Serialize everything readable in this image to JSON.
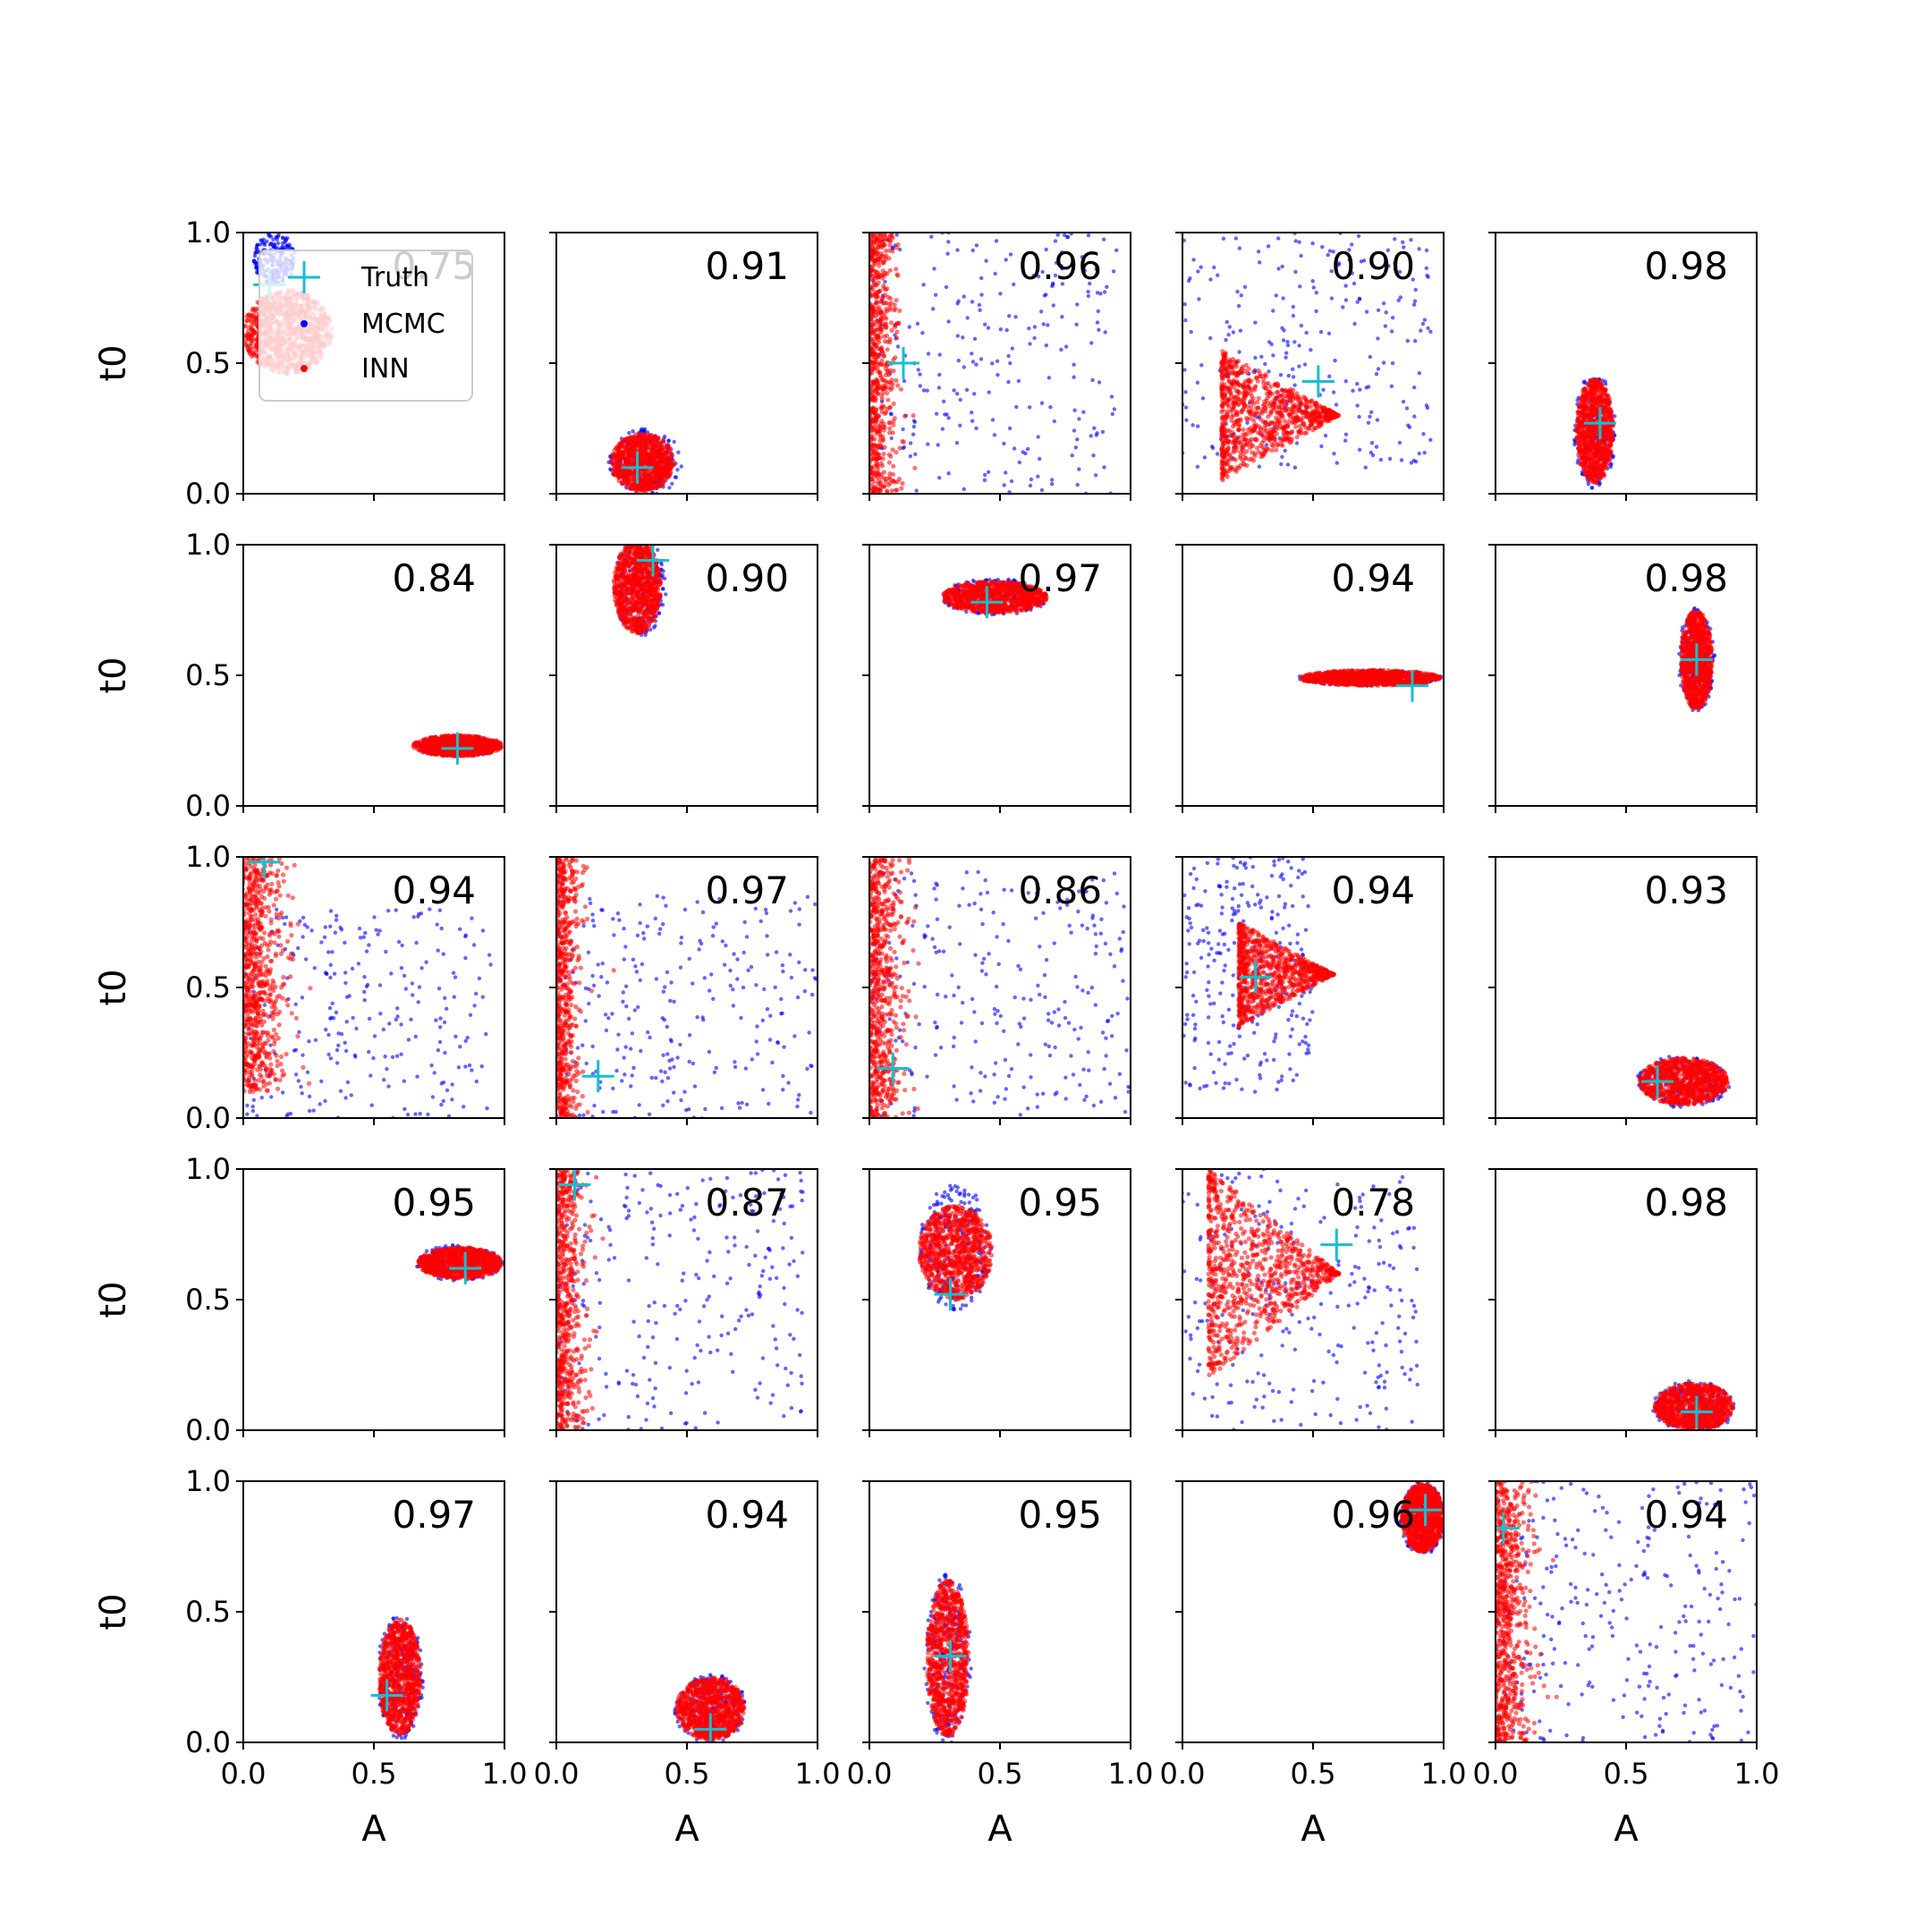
{
  "figure": {
    "background": "#ffffff",
    "axis_color": "#000000",
    "legend": {
      "placement": "top-left of first panel",
      "entries": [
        {
          "label": "Truth",
          "marker": "plus",
          "color": "#17becf"
        },
        {
          "label": "MCMC",
          "marker": "dot",
          "color": "#0000ff"
        },
        {
          "label": "INN",
          "marker": "dot",
          "color": "#ff0000"
        }
      ]
    }
  },
  "chart_data": {
    "type": "scatter",
    "rows": 5,
    "cols": 5,
    "xlabel": "A",
    "ylabel": "t0",
    "xlim": [
      0,
      1
    ],
    "ylim": [
      0,
      1
    ],
    "xticks": [
      "0.0",
      "0.5",
      "1.0"
    ],
    "yticks": [
      "0.0",
      "0.5",
      "1.0"
    ],
    "series_colors": {
      "truth": "#17becf",
      "mcmc": "#0000ff",
      "inn": "#ff0000"
    },
    "panels": [
      {
        "score": "0.75",
        "truth": [
          0.1,
          0.8
        ],
        "inn": {
          "shape": "blob",
          "cx": 0.17,
          "cy": 0.62,
          "rx": 0.17,
          "ry": 0.16
        },
        "mcmc": {
          "shape": "blob",
          "cx": 0.12,
          "cy": 0.9,
          "rx": 0.08,
          "ry": 0.1
        }
      },
      {
        "score": "0.91",
        "truth": [
          0.31,
          0.1
        ],
        "inn": {
          "shape": "blob",
          "cx": 0.33,
          "cy": 0.12,
          "rx": 0.12,
          "ry": 0.11
        },
        "mcmc": {
          "shape": "blob",
          "cx": 0.34,
          "cy": 0.12,
          "rx": 0.14,
          "ry": 0.13
        }
      },
      {
        "score": "0.96",
        "truth": [
          0.13,
          0.5
        ],
        "inn": {
          "shape": "wall",
          "cx": 0.06,
          "cy": 0.5,
          "rx": 0.08,
          "ry": 0.5
        },
        "mcmc": {
          "shape": "spread",
          "cx": 0.45,
          "cy": 0.5,
          "rx": 0.5,
          "ry": 0.5
        }
      },
      {
        "score": "0.90",
        "truth": [
          0.52,
          0.43
        ],
        "inn": {
          "shape": "fan",
          "cx": 0.15,
          "cy": 0.3,
          "rx": 0.45,
          "ry": 0.25
        },
        "mcmc": {
          "shape": "spread",
          "cx": 0.45,
          "cy": 0.55,
          "rx": 0.5,
          "ry": 0.45
        }
      },
      {
        "score": "0.98",
        "truth": [
          0.4,
          0.27
        ],
        "inn": {
          "shape": "blob",
          "cx": 0.38,
          "cy": 0.24,
          "rx": 0.07,
          "ry": 0.2
        },
        "mcmc": {
          "shape": "blob",
          "cx": 0.38,
          "cy": 0.24,
          "rx": 0.08,
          "ry": 0.22
        }
      },
      {
        "score": "0.84",
        "truth": [
          0.82,
          0.22
        ],
        "inn": {
          "shape": "blob",
          "cx": 0.82,
          "cy": 0.23,
          "rx": 0.17,
          "ry": 0.04
        },
        "mcmc": {
          "shape": "blob",
          "cx": 0.82,
          "cy": 0.23,
          "rx": 0.17,
          "ry": 0.04
        }
      },
      {
        "score": "0.90",
        "truth": [
          0.37,
          0.94
        ],
        "inn": {
          "shape": "blob",
          "cx": 0.31,
          "cy": 0.84,
          "rx": 0.09,
          "ry": 0.18
        },
        "mcmc": {
          "shape": "blob",
          "cx": 0.32,
          "cy": 0.84,
          "rx": 0.1,
          "ry": 0.19
        }
      },
      {
        "score": "0.97",
        "truth": [
          0.45,
          0.78
        ],
        "inn": {
          "shape": "blob",
          "cx": 0.48,
          "cy": 0.8,
          "rx": 0.2,
          "ry": 0.06
        },
        "mcmc": {
          "shape": "blob",
          "cx": 0.48,
          "cy": 0.8,
          "rx": 0.21,
          "ry": 0.07
        }
      },
      {
        "score": "0.94",
        "truth": [
          0.88,
          0.46
        ],
        "inn": {
          "shape": "blob",
          "cx": 0.72,
          "cy": 0.49,
          "rx": 0.27,
          "ry": 0.03
        },
        "mcmc": {
          "shape": "blob",
          "cx": 0.72,
          "cy": 0.49,
          "rx": 0.28,
          "ry": 0.03
        }
      },
      {
        "score": "0.98",
        "truth": [
          0.77,
          0.56
        ],
        "inn": {
          "shape": "blob",
          "cx": 0.77,
          "cy": 0.56,
          "rx": 0.06,
          "ry": 0.19
        },
        "mcmc": {
          "shape": "blob",
          "cx": 0.77,
          "cy": 0.56,
          "rx": 0.07,
          "ry": 0.2
        }
      },
      {
        "score": "0.94",
        "truth": [
          0.08,
          0.98
        ],
        "inn": {
          "shape": "wall",
          "cx": 0.1,
          "cy": 0.55,
          "rx": 0.12,
          "ry": 0.45
        },
        "mcmc": {
          "shape": "spread",
          "cx": 0.45,
          "cy": 0.4,
          "rx": 0.5,
          "ry": 0.4
        }
      },
      {
        "score": "0.97",
        "truth": [
          0.16,
          0.16
        ],
        "inn": {
          "shape": "wall",
          "cx": 0.05,
          "cy": 0.5,
          "rx": 0.07,
          "ry": 0.5
        },
        "mcmc": {
          "shape": "spread",
          "cx": 0.5,
          "cy": 0.4,
          "rx": 0.5,
          "ry": 0.45
        }
      },
      {
        "score": "0.86",
        "truth": [
          0.09,
          0.19
        ],
        "inn": {
          "shape": "wall",
          "cx": 0.08,
          "cy": 0.5,
          "rx": 0.1,
          "ry": 0.5
        },
        "mcmc": {
          "shape": "spread",
          "cx": 0.5,
          "cy": 0.45,
          "rx": 0.5,
          "ry": 0.5
        }
      },
      {
        "score": "0.94",
        "truth": [
          0.28,
          0.54
        ],
        "inn": {
          "shape": "cone",
          "cx": 0.3,
          "cy": 0.55,
          "rx": 0.28,
          "ry": 0.2
        },
        "mcmc": {
          "shape": "spread",
          "cx": 0.25,
          "cy": 0.55,
          "rx": 0.25,
          "ry": 0.45
        }
      },
      {
        "score": "0.93",
        "truth": [
          0.62,
          0.14
        ],
        "inn": {
          "shape": "blob",
          "cx": 0.72,
          "cy": 0.14,
          "rx": 0.17,
          "ry": 0.09
        },
        "mcmc": {
          "shape": "blob",
          "cx": 0.72,
          "cy": 0.14,
          "rx": 0.18,
          "ry": 0.1
        }
      },
      {
        "score": "0.95",
        "truth": [
          0.85,
          0.62
        ],
        "inn": {
          "shape": "blob",
          "cx": 0.83,
          "cy": 0.64,
          "rx": 0.16,
          "ry": 0.06
        },
        "mcmc": {
          "shape": "blob",
          "cx": 0.83,
          "cy": 0.64,
          "rx": 0.17,
          "ry": 0.07
        }
      },
      {
        "score": "0.87",
        "truth": [
          0.07,
          0.94
        ],
        "inn": {
          "shape": "wall",
          "cx": 0.06,
          "cy": 0.5,
          "rx": 0.08,
          "ry": 0.5
        },
        "mcmc": {
          "shape": "spread",
          "cx": 0.45,
          "cy": 0.5,
          "rx": 0.5,
          "ry": 0.5
        }
      },
      {
        "score": "0.95",
        "truth": [
          0.31,
          0.52
        ],
        "inn": {
          "shape": "blob",
          "cx": 0.33,
          "cy": 0.68,
          "rx": 0.14,
          "ry": 0.18
        },
        "mcmc": {
          "shape": "blob",
          "cx": 0.33,
          "cy": 0.7,
          "rx": 0.14,
          "ry": 0.24
        }
      },
      {
        "score": "0.78",
        "truth": [
          0.59,
          0.71
        ],
        "inn": {
          "shape": "fan",
          "cx": 0.1,
          "cy": 0.6,
          "rx": 0.5,
          "ry": 0.4
        },
        "mcmc": {
          "shape": "spread",
          "cx": 0.4,
          "cy": 0.5,
          "rx": 0.5,
          "ry": 0.5
        }
      },
      {
        "score": "0.98",
        "truth": [
          0.77,
          0.07
        ],
        "inn": {
          "shape": "blob",
          "cx": 0.76,
          "cy": 0.09,
          "rx": 0.15,
          "ry": 0.09
        },
        "mcmc": {
          "shape": "blob",
          "cx": 0.76,
          "cy": 0.09,
          "rx": 0.16,
          "ry": 0.1
        }
      },
      {
        "score": "0.97",
        "truth": [
          0.55,
          0.18
        ],
        "inn": {
          "shape": "blob",
          "cx": 0.6,
          "cy": 0.25,
          "rx": 0.08,
          "ry": 0.22
        },
        "mcmc": {
          "shape": "blob",
          "cx": 0.6,
          "cy": 0.25,
          "rx": 0.09,
          "ry": 0.24
        }
      },
      {
        "score": "0.94",
        "truth": [
          0.59,
          0.05
        ],
        "inn": {
          "shape": "blob",
          "cx": 0.59,
          "cy": 0.13,
          "rx": 0.13,
          "ry": 0.12
        },
        "mcmc": {
          "shape": "blob",
          "cx": 0.59,
          "cy": 0.13,
          "rx": 0.14,
          "ry": 0.13
        }
      },
      {
        "score": "0.95",
        "truth": [
          0.31,
          0.33
        ],
        "inn": {
          "shape": "blob",
          "cx": 0.3,
          "cy": 0.32,
          "rx": 0.08,
          "ry": 0.3
        },
        "mcmc": {
          "shape": "blob",
          "cx": 0.3,
          "cy": 0.32,
          "rx": 0.09,
          "ry": 0.33
        }
      },
      {
        "score": "0.96",
        "truth": [
          0.93,
          0.89
        ],
        "inn": {
          "shape": "blob",
          "cx": 0.92,
          "cy": 0.86,
          "rx": 0.08,
          "ry": 0.13
        },
        "mcmc": {
          "shape": "blob",
          "cx": 0.92,
          "cy": 0.86,
          "rx": 0.09,
          "ry": 0.14
        }
      },
      {
        "score": "0.94",
        "truth": [
          0.03,
          0.82
        ],
        "inn": {
          "shape": "wall",
          "cx": 0.08,
          "cy": 0.5,
          "rx": 0.1,
          "ry": 0.5
        },
        "mcmc": {
          "shape": "spread",
          "cx": 0.5,
          "cy": 0.5,
          "rx": 0.5,
          "ry": 0.5
        }
      }
    ]
  }
}
